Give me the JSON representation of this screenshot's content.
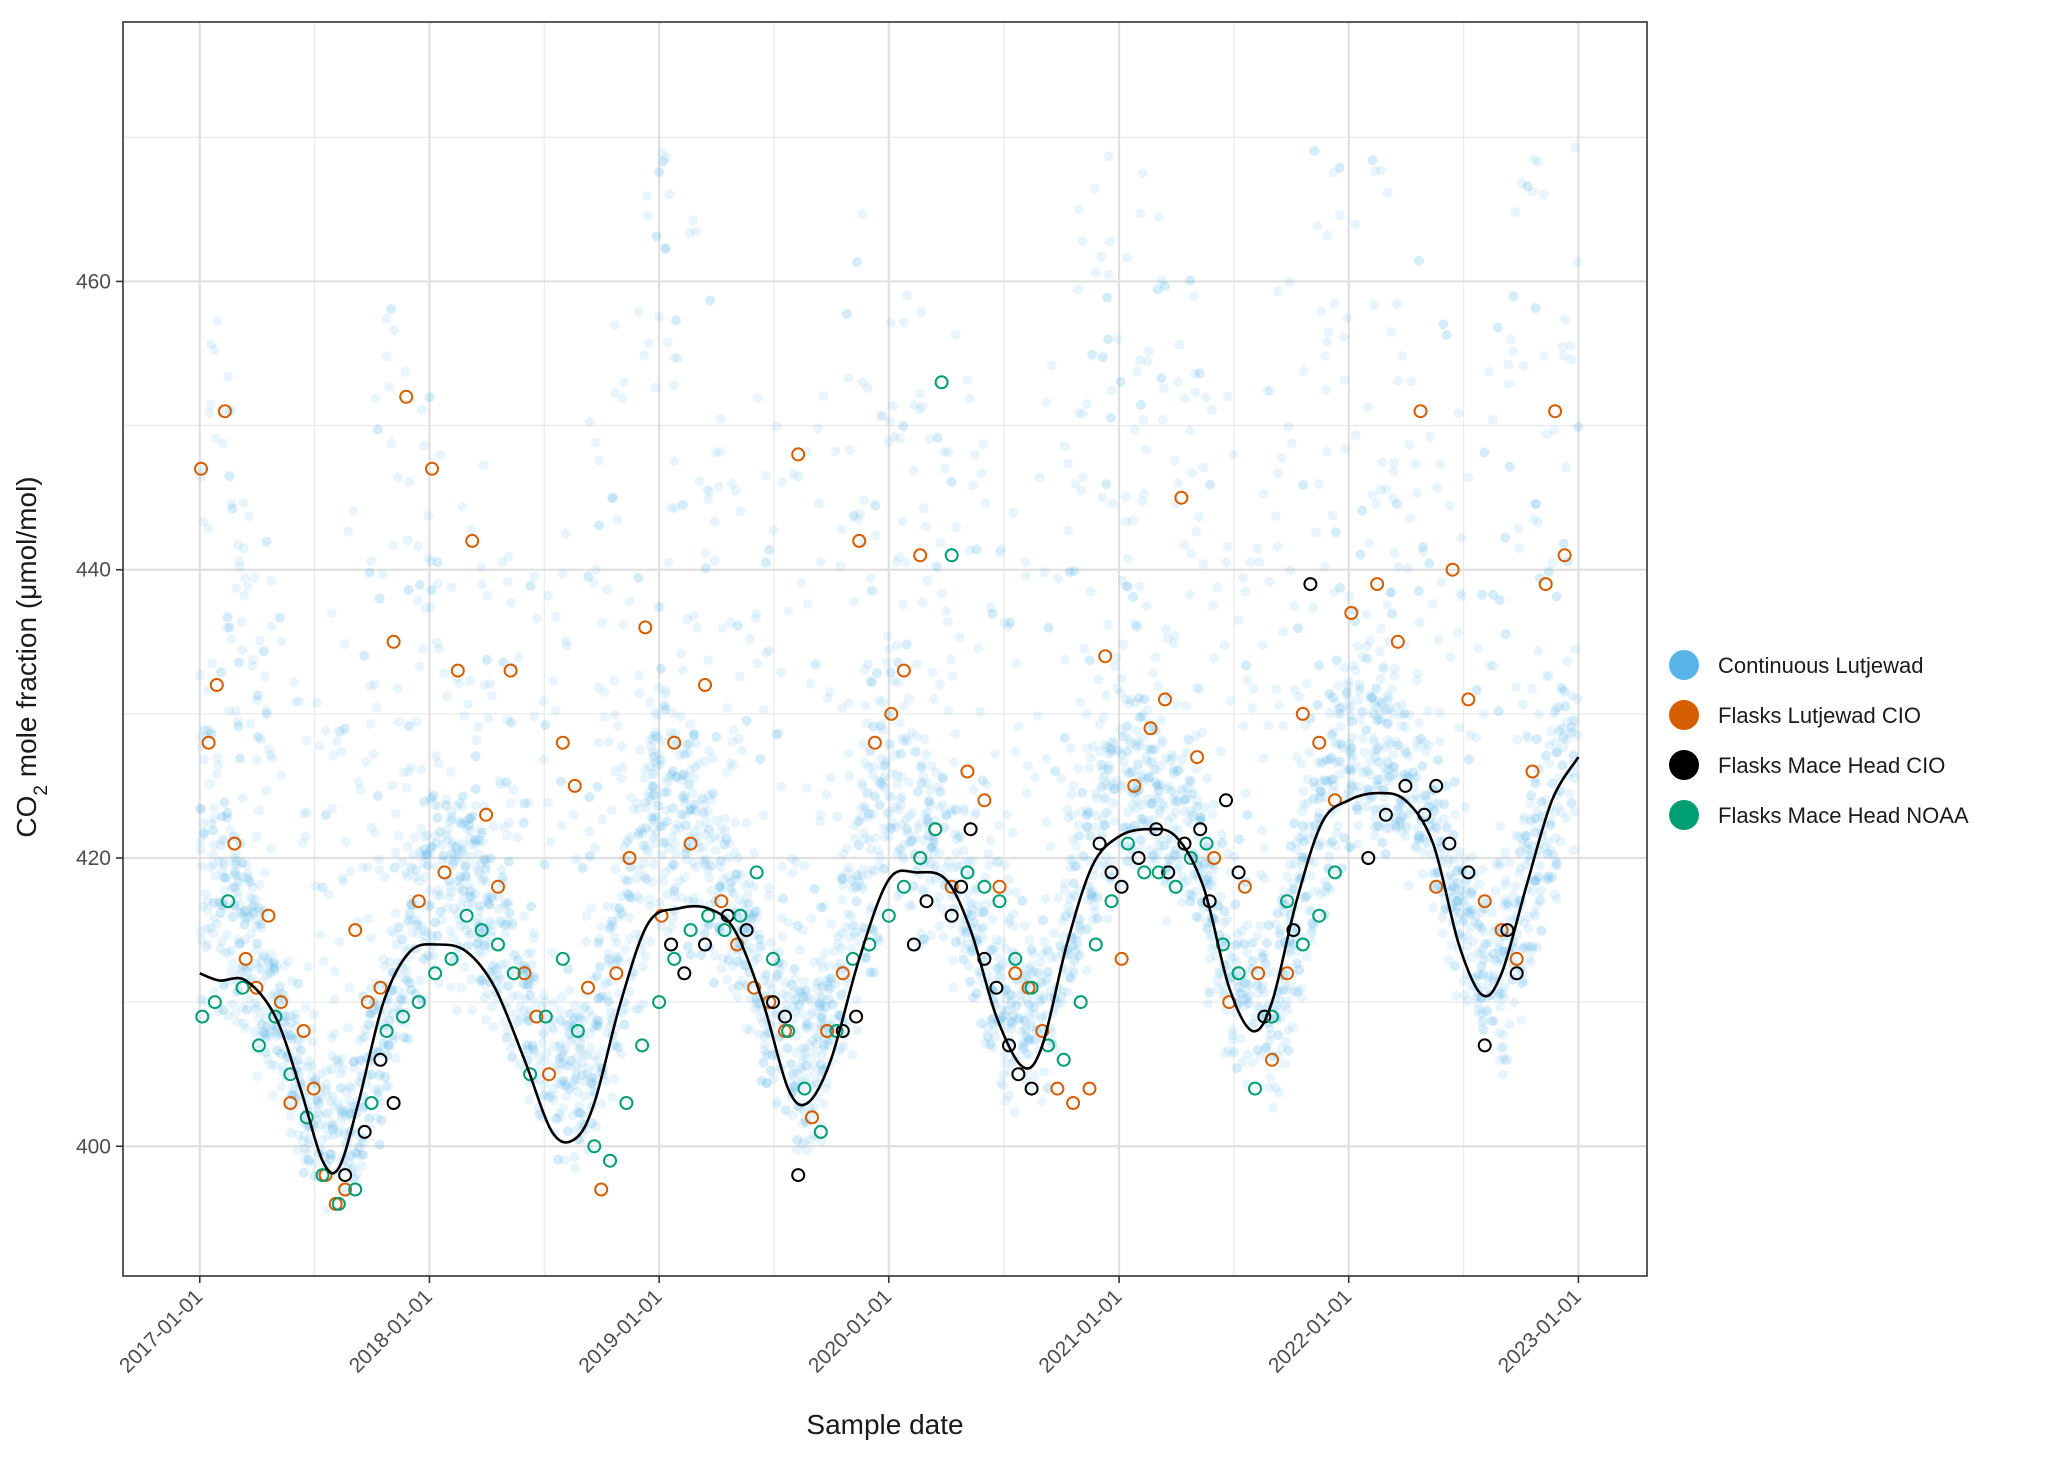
{
  "chart_data": {
    "type": "scatter",
    "title": "",
    "xlabel": "Sample date",
    "ylabel": {
      "prefix": "CO",
      "subscript": "2",
      "suffix": " mole fraction (μmol/mol)"
    },
    "x_axis": {
      "type": "date",
      "range": [
        "2016-09-01",
        "2023-04-20"
      ],
      "ticks": [
        "2017-01-01",
        "2018-01-01",
        "2019-01-01",
        "2020-01-01",
        "2021-01-01",
        "2022-01-01",
        "2023-01-01"
      ]
    },
    "y_axis": {
      "range": [
        391,
        478
      ],
      "ticks": [
        400,
        420,
        440,
        460
      ],
      "minor_ticks": [
        410,
        430,
        450,
        470
      ]
    },
    "grid": true,
    "legend_position": "right",
    "series": [
      {
        "name": "Continuous Lutjewad",
        "color": "#56B4E9",
        "marker": "filled-circle-transparent",
        "envelope": {
          "description_of_data": "dense hourly cloud; approximate monthly lower / typical / upper bounds",
          "x": [
            "2017-01-01",
            "2017-03-01",
            "2017-05-01",
            "2017-07-01",
            "2017-09-01",
            "2017-11-01",
            "2018-01-01",
            "2018-03-01",
            "2018-05-01",
            "2018-07-01",
            "2018-09-01",
            "2018-11-01",
            "2019-01-01",
            "2019-03-01",
            "2019-05-01",
            "2019-07-01",
            "2019-09-01",
            "2019-11-01",
            "2020-01-01",
            "2020-03-01",
            "2020-05-01",
            "2020-07-01",
            "2020-09-01",
            "2020-11-01",
            "2021-01-01",
            "2021-03-01",
            "2021-05-01",
            "2021-07-01",
            "2021-09-01",
            "2021-11-01",
            "2022-01-01",
            "2022-03-01",
            "2022-05-01",
            "2022-07-01",
            "2022-09-01",
            "2022-11-01",
            "2023-01-01"
          ],
          "low": [
            409,
            408,
            403,
            397,
            396,
            403,
            411,
            411,
            407,
            401,
            399,
            406,
            414,
            414,
            410,
            403,
            399,
            407,
            416,
            415,
            411,
            404,
            403,
            411,
            419,
            418,
            414,
            406,
            403,
            412,
            421,
            421,
            418,
            410,
            405,
            413,
            423
          ],
          "mid": [
            430,
            420,
            412,
            404,
            405,
            413,
            424,
            422,
            417,
            409,
            408,
            418,
            430,
            426,
            420,
            412,
            410,
            420,
            430,
            426,
            420,
            412,
            412,
            422,
            432,
            428,
            424,
            414,
            414,
            424,
            432,
            430,
            428,
            418,
            416,
            426,
            435
          ],
          "high": [
            465,
            450,
            440,
            430,
            445,
            460,
            455,
            452,
            445,
            440,
            448,
            462,
            470,
            465,
            455,
            450,
            452,
            468,
            466,
            462,
            455,
            448,
            452,
            468,
            472,
            466,
            460,
            452,
            458,
            470,
            472,
            468,
            462,
            455,
            462,
            472,
            474
          ]
        }
      },
      {
        "name": "Flasks Lutjewad CIO",
        "color": "#D55E00",
        "marker": "open-circle",
        "x": [
          "2017-01-03",
          "2017-01-15",
          "2017-01-28",
          "2017-02-10",
          "2017-02-25",
          "2017-03-15",
          "2017-04-01",
          "2017-04-20",
          "2017-05-10",
          "2017-05-25",
          "2017-06-15",
          "2017-07-01",
          "2017-07-20",
          "2017-08-05",
          "2017-08-20",
          "2017-09-05",
          "2017-09-25",
          "2017-10-15",
          "2017-11-05",
          "2017-11-25",
          "2017-12-15",
          "2018-01-05",
          "2018-01-25",
          "2018-02-15",
          "2018-03-10",
          "2018-04-01",
          "2018-04-20",
          "2018-05-10",
          "2018-06-01",
          "2018-06-20",
          "2018-07-10",
          "2018-08-01",
          "2018-08-20",
          "2018-09-10",
          "2018-10-01",
          "2018-10-25",
          "2018-11-15",
          "2018-12-10",
          "2019-01-05",
          "2019-01-25",
          "2019-02-20",
          "2019-03-15",
          "2019-04-10",
          "2019-05-05",
          "2019-06-01",
          "2019-06-25",
          "2019-07-20",
          "2019-08-10",
          "2019-09-01",
          "2019-09-25",
          "2019-10-20",
          "2019-11-15",
          "2019-12-10",
          "2020-01-05",
          "2020-01-25",
          "2020-02-20",
          "2020-03-15",
          "2020-04-10",
          "2020-05-05",
          "2020-06-01",
          "2020-06-25",
          "2020-07-20",
          "2020-08-10",
          "2020-09-01",
          "2020-09-25",
          "2020-10-20",
          "2020-11-15",
          "2020-12-10",
          "2021-01-05",
          "2021-01-25",
          "2021-02-20",
          "2021-03-15",
          "2021-04-10",
          "2021-05-05",
          "2021-06-01",
          "2021-06-25",
          "2021-07-20",
          "2021-08-10",
          "2021-09-01",
          "2021-09-25",
          "2021-10-20",
          "2021-11-15",
          "2021-12-10",
          "2022-01-05",
          "2022-02-15",
          "2022-03-20",
          "2022-04-25",
          "2022-05-20",
          "2022-06-15",
          "2022-07-10",
          "2022-08-05",
          "2022-09-01",
          "2022-09-25",
          "2022-10-20",
          "2022-11-10",
          "2022-11-25",
          "2022-12-10"
        ],
        "y": [
          447,
          428,
          432,
          451,
          421,
          413,
          411,
          416,
          410,
          403,
          408,
          404,
          398,
          396,
          397,
          415,
          410,
          411,
          435,
          452,
          417,
          447,
          419,
          433,
          442,
          423,
          418,
          433,
          412,
          409,
          405,
          428,
          425,
          411,
          397,
          412,
          420,
          436,
          416,
          428,
          421,
          432,
          417,
          414,
          411,
          410,
          408,
          448,
          402,
          408,
          412,
          442,
          428,
          430,
          433,
          441,
          422,
          418,
          426,
          424,
          418,
          412,
          411,
          408,
          404,
          403,
          404,
          434,
          413,
          425,
          429,
          431,
          445,
          427,
          420,
          410,
          418,
          412,
          406,
          412,
          430,
          428,
          424,
          437,
          439,
          435,
          451,
          418,
          440,
          431,
          417,
          415,
          413,
          426,
          439,
          451,
          441
        ]
      },
      {
        "name": "Flasks Mace Head CIO",
        "color": "#000000",
        "marker": "open-circle",
        "x": [
          "2017-08-20",
          "2017-09-20",
          "2017-10-15",
          "2017-11-05",
          "2019-01-20",
          "2019-02-10",
          "2019-03-15",
          "2019-04-20",
          "2019-05-20",
          "2019-07-01",
          "2019-07-20",
          "2019-08-10",
          "2019-10-20",
          "2019-11-10",
          "2020-02-10",
          "2020-03-01",
          "2020-04-10",
          "2020-04-25",
          "2020-05-10",
          "2020-06-01",
          "2020-06-20",
          "2020-07-10",
          "2020-07-25",
          "2020-08-15",
          "2020-12-01",
          "2020-12-20",
          "2021-01-05",
          "2021-02-01",
          "2021-03-01",
          "2021-03-20",
          "2021-04-15",
          "2021-05-10",
          "2021-05-25",
          "2021-06-20",
          "2021-07-10",
          "2021-08-20",
          "2021-10-05",
          "2021-11-01",
          "2022-02-01",
          "2022-03-01",
          "2022-04-01",
          "2022-05-01",
          "2022-05-20",
          "2022-06-10",
          "2022-07-10",
          "2022-08-05",
          "2022-09-10",
          "2022-09-25"
        ],
        "y": [
          398,
          401,
          406,
          403,
          414,
          412,
          414,
          416,
          415,
          410,
          409,
          398,
          408,
          409,
          414,
          417,
          416,
          418,
          422,
          413,
          411,
          407,
          405,
          404,
          421,
          419,
          418,
          420,
          422,
          419,
          421,
          422,
          417,
          424,
          419,
          409,
          415,
          439,
          420,
          423,
          425,
          423,
          425,
          421,
          419,
          407,
          415,
          412
        ]
      },
      {
        "name": "Flasks Mace Head NOAA",
        "color": "#009E73",
        "marker": "open-circle",
        "x": [
          "2017-01-05",
          "2017-01-25",
          "2017-02-15",
          "2017-03-10",
          "2017-04-05",
          "2017-05-01",
          "2017-05-25",
          "2017-06-20",
          "2017-07-15",
          "2017-08-10",
          "2017-09-05",
          "2017-10-01",
          "2017-10-25",
          "2017-11-20",
          "2017-12-15",
          "2018-01-10",
          "2018-02-05",
          "2018-03-01",
          "2018-03-25",
          "2018-04-20",
          "2018-05-15",
          "2018-06-10",
          "2018-07-05",
          "2018-08-01",
          "2018-08-25",
          "2018-09-20",
          "2018-10-15",
          "2018-11-10",
          "2018-12-05",
          "2019-01-01",
          "2019-01-25",
          "2019-02-20",
          "2019-03-20",
          "2019-04-15",
          "2019-05-10",
          "2019-06-05",
          "2019-07-01",
          "2019-07-25",
          "2019-08-20",
          "2019-09-15",
          "2019-10-10",
          "2019-11-05",
          "2019-12-01",
          "2020-01-01",
          "2020-01-25",
          "2020-02-20",
          "2020-03-15",
          "2020-03-25",
          "2020-04-10",
          "2020-05-05",
          "2020-06-01",
          "2020-06-25",
          "2020-07-20",
          "2020-08-15",
          "2020-09-10",
          "2020-10-05",
          "2020-11-01",
          "2020-11-25",
          "2020-12-20",
          "2021-01-15",
          "2021-02-10",
          "2021-03-05",
          "2021-04-01",
          "2021-04-25",
          "2021-05-20",
          "2021-06-15",
          "2021-07-10",
          "2021-08-05",
          "2021-09-01",
          "2021-09-25",
          "2021-10-20",
          "2021-11-15",
          "2021-12-10"
        ],
        "y": [
          409,
          410,
          417,
          411,
          407,
          409,
          405,
          402,
          398,
          396,
          397,
          403,
          408,
          409,
          410,
          412,
          413,
          416,
          415,
          414,
          412,
          405,
          409,
          413,
          408,
          400,
          399,
          403,
          407,
          410,
          413,
          415,
          416,
          415,
          416,
          419,
          413,
          408,
          404,
          401,
          408,
          413,
          414,
          416,
          418,
          420,
          422,
          453,
          441,
          419,
          418,
          417,
          413,
          411,
          407,
          406,
          410,
          414,
          417,
          421,
          419,
          419,
          418,
          420,
          421,
          414,
          412,
          404,
          409,
          417,
          414,
          416,
          419
        ]
      },
      {
        "name": "",
        "color": "#000000",
        "marker": "line",
        "x": [
          "2017-01-01",
          "2017-02-01",
          "2017-03-15",
          "2017-05-01",
          "2017-06-10",
          "2017-07-15",
          "2017-08-10",
          "2017-09-10",
          "2017-10-20",
          "2017-12-01",
          "2018-01-15",
          "2018-03-01",
          "2018-04-15",
          "2018-06-01",
          "2018-07-15",
          "2018-08-20",
          "2018-09-20",
          "2018-11-01",
          "2018-12-15",
          "2019-02-01",
          "2019-03-20",
          "2019-05-01",
          "2019-06-15",
          "2019-07-25",
          "2019-08-25",
          "2019-10-01",
          "2019-11-15",
          "2020-01-01",
          "2020-02-15",
          "2020-04-01",
          "2020-05-10",
          "2020-06-20",
          "2020-08-01",
          "2020-09-01",
          "2020-10-10",
          "2020-11-20",
          "2021-01-01",
          "2021-02-15",
          "2021-04-01",
          "2021-05-15",
          "2021-06-25",
          "2021-08-01",
          "2021-09-01",
          "2021-10-10",
          "2021-11-20",
          "2022-01-01",
          "2022-02-15",
          "2022-04-01",
          "2022-05-15",
          "2022-06-25",
          "2022-08-01",
          "2022-09-01",
          "2022-10-10",
          "2022-11-20",
          "2023-01-01"
        ],
        "y": [
          412,
          411.5,
          411.5,
          409,
          404,
          399,
          398.5,
          403,
          410,
          413.5,
          414,
          413.5,
          411,
          406,
          401,
          400.5,
          403,
          410,
          415.5,
          416.5,
          416.5,
          415,
          410,
          404,
          403,
          406,
          413,
          418.5,
          419,
          418.5,
          415,
          409,
          405.5,
          407,
          414,
          419.5,
          421.5,
          422,
          421.5,
          418,
          411,
          408,
          410,
          417,
          422.5,
          424,
          424.5,
          424,
          421,
          414,
          410.5,
          412,
          418,
          424,
          427
        ]
      }
    ]
  }
}
